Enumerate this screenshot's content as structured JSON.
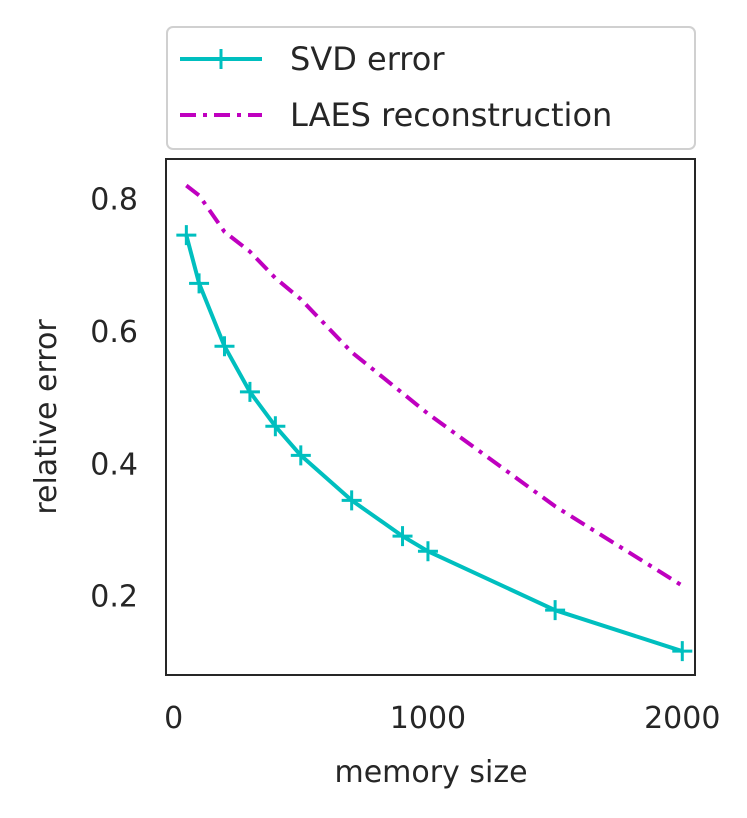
{
  "chart_data": {
    "type": "line",
    "title": "",
    "xlabel": "memory size",
    "ylabel": "relative error",
    "xlim": [
      -30,
      2050
    ],
    "ylim": [
      0.08,
      0.86
    ],
    "xticks": [
      0,
      1000,
      2000
    ],
    "xtick_labels": [
      "0",
      "1000",
      "2000"
    ],
    "yticks": [
      0.2,
      0.4,
      0.6,
      0.8
    ],
    "ytick_labels": [
      "0.2",
      "0.4",
      "0.6",
      "0.8"
    ],
    "grid": false,
    "legend_position": "top (outside plot area)",
    "series": [
      {
        "name": "SVD error",
        "color": "#00bfbf",
        "line_style": "solid",
        "marker": "plus",
        "x": [
          50,
          100,
          200,
          300,
          400,
          500,
          700,
          900,
          1000,
          1500,
          2000
        ],
        "y": [
          0.745,
          0.672,
          0.577,
          0.508,
          0.456,
          0.412,
          0.344,
          0.29,
          0.267,
          0.178,
          0.116
        ]
      },
      {
        "name": "LAES reconstruction",
        "color": "#bf00bf",
        "line_style": "dashdot",
        "marker": "none",
        "x": [
          50,
          100,
          200,
          300,
          400,
          500,
          700,
          1000,
          1500,
          2000
        ],
        "y": [
          0.82,
          0.805,
          0.75,
          0.72,
          0.68,
          0.648,
          0.568,
          0.475,
          0.335,
          0.215
        ]
      }
    ]
  }
}
